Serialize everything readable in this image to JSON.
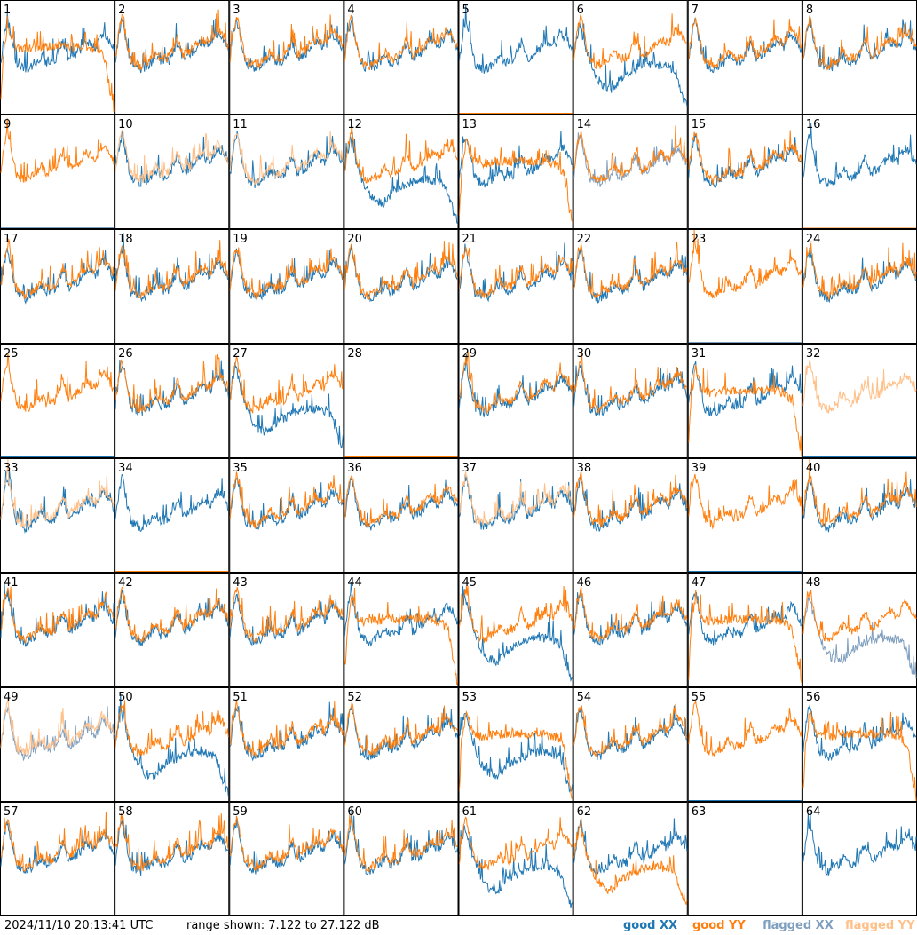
{
  "footer": {
    "timestamp": "2024/11/10 20:13:41 UTC",
    "range_text": "range shown: 7.122 to 27.122 dB"
  },
  "chart_data": {
    "type": "line",
    "title": "",
    "panel_count": 64,
    "grid_columns": 8,
    "grid_rows": 8,
    "panel_labels": [
      "1",
      "2",
      "3",
      "4",
      "5",
      "6",
      "7",
      "8",
      "9",
      "10",
      "11",
      "12",
      "13",
      "14",
      "15",
      "16",
      "17",
      "18",
      "19",
      "20",
      "21",
      "22",
      "23",
      "24",
      "25",
      "26",
      "27",
      "28",
      "29",
      "30",
      "31",
      "32",
      "33",
      "34",
      "35",
      "36",
      "37",
      "38",
      "39",
      "40",
      "41",
      "42",
      "43",
      "44",
      "45",
      "46",
      "47",
      "48",
      "49",
      "50",
      "51",
      "52",
      "53",
      "54",
      "55",
      "56",
      "57",
      "58",
      "59",
      "60",
      "61",
      "62",
      "63",
      "64"
    ],
    "y_range_db": [
      7.122,
      27.122
    ],
    "x_range": [
      0,
      1
    ],
    "series": [
      {
        "name": "good XX",
        "color": "#1f77b4"
      },
      {
        "name": "good YY",
        "color": "#ff7f0e"
      },
      {
        "name": "flagged XX",
        "color": "#7f9fbf"
      },
      {
        "name": "flagged YY",
        "color": "#ffbf87"
      }
    ],
    "profiles": {
      "normal": [
        [
          0.0,
          17
        ],
        [
          0.03,
          22
        ],
        [
          0.06,
          24.5
        ],
        [
          0.1,
          20
        ],
        [
          0.14,
          16.5
        ],
        [
          0.22,
          15.5
        ],
        [
          0.3,
          16.5
        ],
        [
          0.36,
          18
        ],
        [
          0.4,
          16.8
        ],
        [
          0.48,
          17.2
        ],
        [
          0.55,
          20.5
        ],
        [
          0.6,
          17.5
        ],
        [
          0.68,
          18.5
        ],
        [
          0.76,
          20.5
        ],
        [
          0.84,
          19.5
        ],
        [
          0.9,
          22
        ],
        [
          0.95,
          21
        ],
        [
          1.0,
          19
        ]
      ],
      "dip": [
        [
          0.0,
          18
        ],
        [
          0.05,
          23
        ],
        [
          0.1,
          19
        ],
        [
          0.18,
          14
        ],
        [
          0.26,
          12
        ],
        [
          0.34,
          11.5
        ],
        [
          0.42,
          13.5
        ],
        [
          0.52,
          14.5
        ],
        [
          0.62,
          15.5
        ],
        [
          0.72,
          15.8
        ],
        [
          0.82,
          15.5
        ],
        [
          0.88,
          15
        ],
        [
          0.92,
          13
        ],
        [
          0.96,
          10
        ],
        [
          1.0,
          8.5
        ]
      ],
      "plateau": [
        [
          0.0,
          9
        ],
        [
          0.02,
          17
        ],
        [
          0.06,
          23
        ],
        [
          0.12,
          19
        ],
        [
          0.2,
          18.5
        ],
        [
          0.35,
          19
        ],
        [
          0.55,
          19
        ],
        [
          0.75,
          19
        ],
        [
          0.86,
          18.5
        ],
        [
          0.92,
          17
        ],
        [
          0.96,
          12
        ],
        [
          1.0,
          7.5
        ]
      ],
      "fullflag": [
        [
          0.0,
          7.2
        ],
        [
          1.0,
          7.2
        ]
      ]
    },
    "panels": [
      {
        "xx": {
          "profile": "normal",
          "flagged": false
        },
        "yy": {
          "profile": "plateau",
          "flagged": false
        }
      },
      {
        "xx": {
          "profile": "normal",
          "flagged": false
        },
        "yy": {
          "profile": "normal",
          "flagged": false
        }
      },
      {
        "xx": {
          "profile": "normal",
          "flagged": false
        },
        "yy": {
          "profile": "normal",
          "flagged": false
        }
      },
      {
        "xx": {
          "profile": "normal",
          "flagged": false
        },
        "yy": {
          "profile": "normal",
          "flagged": false
        }
      },
      {
        "xx": {
          "profile": "normal",
          "flagged": false
        },
        "yy": {
          "profile": "fullflag",
          "flagged": false
        }
      },
      {
        "xx": {
          "profile": "dip",
          "flagged": false
        },
        "yy": {
          "profile": "normal",
          "flagged": false
        }
      },
      {
        "xx": {
          "profile": "normal",
          "flagged": false
        },
        "yy": {
          "profile": "normal",
          "flagged": false
        }
      },
      {
        "xx": {
          "profile": "normal",
          "flagged": false
        },
        "yy": {
          "profile": "normal",
          "flagged": false
        }
      },
      {
        "xx": {
          "profile": "fullflag",
          "flagged": true
        },
        "yy": {
          "profile": "normal",
          "flagged": false
        }
      },
      {
        "xx": {
          "profile": "normal",
          "flagged": false
        },
        "yy": {
          "profile": "normal",
          "flagged": true
        }
      },
      {
        "xx": {
          "profile": "normal",
          "flagged": false
        },
        "yy": {
          "profile": "normal",
          "flagged": true
        }
      },
      {
        "xx": {
          "profile": "dip",
          "flagged": false
        },
        "yy": {
          "profile": "normal",
          "flagged": false
        }
      },
      {
        "xx": {
          "profile": "normal",
          "flagged": false
        },
        "yy": {
          "profile": "plateau",
          "flagged": false
        }
      },
      {
        "xx": {
          "profile": "normal",
          "flagged": true
        },
        "yy": {
          "profile": "normal",
          "flagged": false
        }
      },
      {
        "xx": {
          "profile": "normal",
          "flagged": false
        },
        "yy": {
          "profile": "normal",
          "flagged": false
        }
      },
      {
        "xx": {
          "profile": "normal",
          "flagged": false
        },
        "yy": {
          "profile": "fullflag",
          "flagged": true
        }
      },
      {
        "xx": {
          "profile": "normal",
          "flagged": false
        },
        "yy": {
          "profile": "normal",
          "flagged": false
        }
      },
      {
        "xx": {
          "profile": "normal",
          "flagged": false
        },
        "yy": {
          "profile": "normal",
          "flagged": false
        }
      },
      {
        "xx": {
          "profile": "normal",
          "flagged": false
        },
        "yy": {
          "profile": "normal",
          "flagged": false
        }
      },
      {
        "xx": {
          "profile": "normal",
          "flagged": false
        },
        "yy": {
          "profile": "normal",
          "flagged": false
        }
      },
      {
        "xx": {
          "profile": "normal",
          "flagged": false
        },
        "yy": {
          "profile": "normal",
          "flagged": false
        }
      },
      {
        "xx": {
          "profile": "normal",
          "flagged": false
        },
        "yy": {
          "profile": "normal",
          "flagged": false
        }
      },
      {
        "xx": {
          "profile": "fullflag",
          "flagged": true
        },
        "yy": {
          "profile": "normal",
          "flagged": false
        }
      },
      {
        "xx": {
          "profile": "normal",
          "flagged": false
        },
        "yy": {
          "profile": "normal",
          "flagged": false
        }
      },
      {
        "xx": {
          "profile": "fullflag",
          "flagged": false
        },
        "yy": {
          "profile": "normal",
          "flagged": false
        }
      },
      {
        "xx": {
          "profile": "normal",
          "flagged": false
        },
        "yy": {
          "profile": "normal",
          "flagged": false
        }
      },
      {
        "xx": {
          "profile": "dip",
          "flagged": false
        },
        "yy": {
          "profile": "normal",
          "flagged": false
        }
      },
      {
        "xx": {
          "profile": "fullflag",
          "flagged": false
        },
        "yy": {
          "profile": "fullflag",
          "flagged": false
        }
      },
      {
        "xx": {
          "profile": "normal",
          "flagged": false
        },
        "yy": {
          "profile": "normal",
          "flagged": false
        }
      },
      {
        "xx": {
          "profile": "normal",
          "flagged": false
        },
        "yy": {
          "profile": "normal",
          "flagged": false
        }
      },
      {
        "xx": {
          "profile": "normal",
          "flagged": false
        },
        "yy": {
          "profile": "plateau",
          "flagged": false
        }
      },
      {
        "xx": {
          "profile": "fullflag",
          "flagged": false
        },
        "yy": {
          "profile": "normal",
          "flagged": true
        }
      },
      {
        "xx": {
          "profile": "normal",
          "flagged": false
        },
        "yy": {
          "profile": "normal",
          "flagged": true
        }
      },
      {
        "xx": {
          "profile": "normal",
          "flagged": false
        },
        "yy": {
          "profile": "fullflag",
          "flagged": false
        }
      },
      {
        "xx": {
          "profile": "normal",
          "flagged": false
        },
        "yy": {
          "profile": "normal",
          "flagged": false
        }
      },
      {
        "xx": {
          "profile": "normal",
          "flagged": false
        },
        "yy": {
          "profile": "normal",
          "flagged": false
        }
      },
      {
        "xx": {
          "profile": "normal",
          "flagged": false
        },
        "yy": {
          "profile": "normal",
          "flagged": true
        }
      },
      {
        "xx": {
          "profile": "normal",
          "flagged": false
        },
        "yy": {
          "profile": "normal",
          "flagged": false
        }
      },
      {
        "xx": {
          "profile": "fullflag",
          "flagged": false
        },
        "yy": {
          "profile": "normal",
          "flagged": false
        }
      },
      {
        "xx": {
          "profile": "normal",
          "flagged": false
        },
        "yy": {
          "profile": "normal",
          "flagged": false
        }
      },
      {
        "xx": {
          "profile": "normal",
          "flagged": false
        },
        "yy": {
          "profile": "normal",
          "flagged": false
        }
      },
      {
        "xx": {
          "profile": "normal",
          "flagged": false
        },
        "yy": {
          "profile": "normal",
          "flagged": false
        }
      },
      {
        "xx": {
          "profile": "normal",
          "flagged": false
        },
        "yy": {
          "profile": "normal",
          "flagged": false
        }
      },
      {
        "xx": {
          "profile": "normal",
          "flagged": false
        },
        "yy": {
          "profile": "plateau",
          "flagged": false
        }
      },
      {
        "xx": {
          "profile": "dip",
          "flagged": false
        },
        "yy": {
          "profile": "normal",
          "flagged": false
        }
      },
      {
        "xx": {
          "profile": "normal",
          "flagged": false
        },
        "yy": {
          "profile": "normal",
          "flagged": false
        }
      },
      {
        "xx": {
          "profile": "normal",
          "flagged": false
        },
        "yy": {
          "profile": "plateau",
          "flagged": false
        }
      },
      {
        "xx": {
          "profile": "dip",
          "flagged": true
        },
        "yy": {
          "profile": "normal",
          "flagged": false
        }
      },
      {
        "xx": {
          "profile": "normal",
          "flagged": true
        },
        "yy": {
          "profile": "normal",
          "flagged": true
        }
      },
      {
        "xx": {
          "profile": "dip",
          "flagged": false
        },
        "yy": {
          "profile": "normal",
          "flagged": false
        }
      },
      {
        "xx": {
          "profile": "normal",
          "flagged": false
        },
        "yy": {
          "profile": "normal",
          "flagged": false
        }
      },
      {
        "xx": {
          "profile": "normal",
          "flagged": false
        },
        "yy": {
          "profile": "normal",
          "flagged": false
        }
      },
      {
        "xx": {
          "profile": "dip",
          "flagged": false
        },
        "yy": {
          "profile": "plateau",
          "flagged": false
        }
      },
      {
        "xx": {
          "profile": "normal",
          "flagged": false
        },
        "yy": {
          "profile": "normal",
          "flagged": false
        }
      },
      {
        "xx": {
          "profile": "fullflag",
          "flagged": false
        },
        "yy": {
          "profile": "normal",
          "flagged": false
        }
      },
      {
        "xx": {
          "profile": "normal",
          "flagged": false
        },
        "yy": {
          "profile": "plateau",
          "flagged": false
        }
      },
      {
        "xx": {
          "profile": "normal",
          "flagged": false
        },
        "yy": {
          "profile": "normal",
          "flagged": false
        }
      },
      {
        "xx": {
          "profile": "normal",
          "flagged": false
        },
        "yy": {
          "profile": "normal",
          "flagged": false
        }
      },
      {
        "xx": {
          "profile": "normal",
          "flagged": false
        },
        "yy": {
          "profile": "normal",
          "flagged": false
        }
      },
      {
        "xx": {
          "profile": "normal",
          "flagged": false
        },
        "yy": {
          "profile": "normal",
          "flagged": false
        }
      },
      {
        "xx": {
          "profile": "dip",
          "flagged": false
        },
        "yy": {
          "profile": "normal",
          "flagged": false
        }
      },
      {
        "xx": {
          "profile": "normal",
          "flagged": false
        },
        "yy": {
          "profile": "dip",
          "flagged": false
        }
      },
      {
        "xx": {
          "profile": "fullflag",
          "flagged": false
        },
        "yy": {
          "profile": "fullflag",
          "flagged": false
        }
      },
      {
        "xx": {
          "profile": "normal",
          "flagged": false
        },
        "yy": {
          "profile": "fullflag",
          "flagged": true
        }
      }
    ]
  }
}
